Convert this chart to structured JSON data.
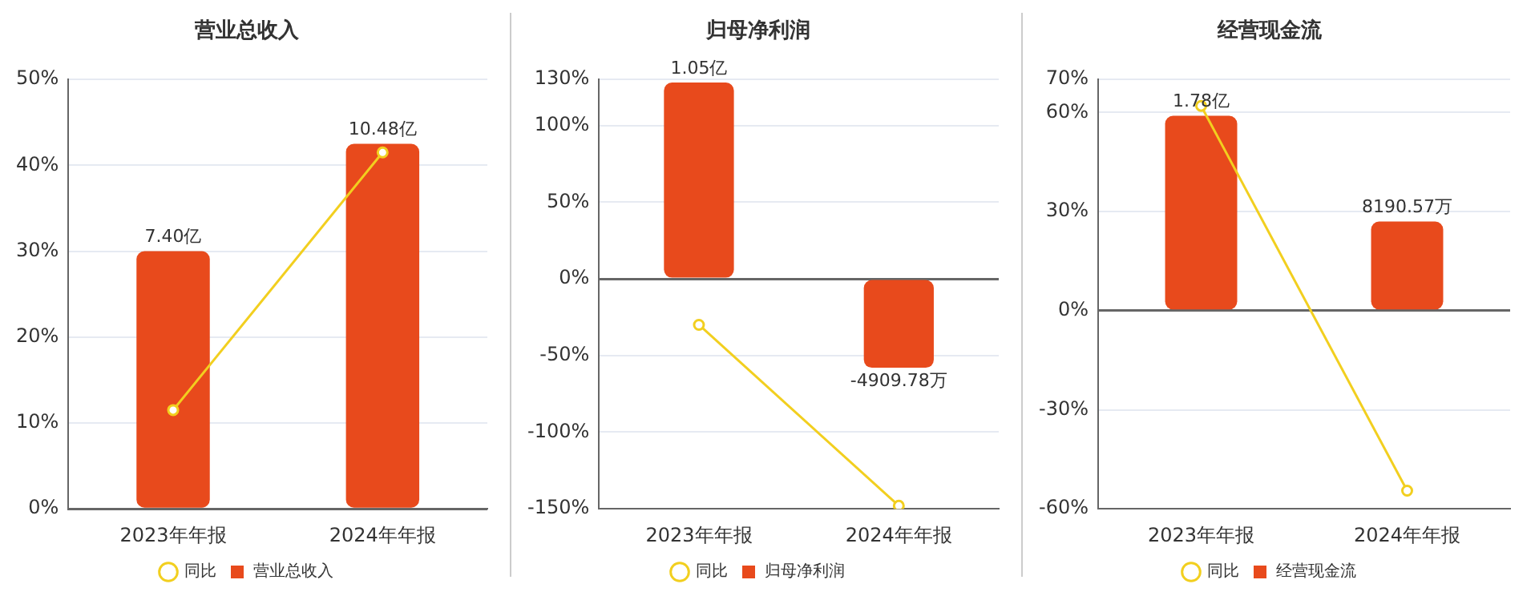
{
  "chart_data": [
    {
      "type": "bar",
      "title": "营业总收入",
      "categories": [
        "2023年年报",
        "2024年年报"
      ],
      "ylim": [
        0,
        50
      ],
      "yticks": [
        {
          "value": 0,
          "label": "0%"
        },
        {
          "value": 10,
          "label": "10%"
        },
        {
          "value": 20,
          "label": "20%"
        },
        {
          "value": 30,
          "label": "30%"
        },
        {
          "value": 40,
          "label": "40%"
        },
        {
          "value": 50,
          "label": "50%"
        }
      ],
      "grid": "y",
      "legend": "bottom",
      "marker": "circle",
      "annotations": [
        {
          "text": "7.40亿",
          "x": "2023年年报",
          "y": 30
        },
        {
          "text": "10.48亿",
          "x": "2024年年报",
          "y": 42.5
        }
      ],
      "series": [
        {
          "name": "营业总收入",
          "color": "#e84a1c",
          "values": [
            30,
            42.5
          ]
        },
        {
          "name": "同比",
          "type": "line",
          "color": "#f2cf1f",
          "values": [
            11.5,
            41.5
          ]
        }
      ]
    },
    {
      "type": "bar",
      "title": "归母净利润",
      "categories": [
        "2023年年报",
        "2024年年报"
      ],
      "ylim": [
        -150,
        130
      ],
      "yticks": [
        {
          "value": -150,
          "label": "-150%"
        },
        {
          "value": -100,
          "label": "-100%"
        },
        {
          "value": -50,
          "label": "-50%"
        },
        {
          "value": 0,
          "label": "0%"
        },
        {
          "value": 50,
          "label": "50%"
        },
        {
          "value": 100,
          "label": "100%"
        },
        {
          "value": 130,
          "label": "130%"
        }
      ],
      "grid": "y",
      "legend": "bottom",
      "marker": "circle",
      "annotations": [
        {
          "text": "1.05亿",
          "x": "2023年年报",
          "y": 128
        },
        {
          "text": "-4909.78万",
          "x": "2024年年报",
          "y": -58
        }
      ],
      "series": [
        {
          "name": "归母净利润",
          "color": "#e84a1c",
          "values": [
            128,
            -58
          ]
        },
        {
          "name": "同比",
          "type": "line",
          "color": "#f2cf1f",
          "values": [
            -30,
            -148
          ]
        }
      ]
    },
    {
      "type": "bar",
      "title": "经营现金流",
      "categories": [
        "2023年年报",
        "2024年年报"
      ],
      "ylim": [
        -60,
        70
      ],
      "yticks": [
        {
          "value": -60,
          "label": "-60%"
        },
        {
          "value": -30,
          "label": "-30%"
        },
        {
          "value": 0,
          "label": "0%"
        },
        {
          "value": 30,
          "label": "30%"
        },
        {
          "value": 60,
          "label": "60%"
        },
        {
          "value": 70,
          "label": "70%"
        }
      ],
      "grid": "y",
      "legend": "bottom",
      "marker": "circle",
      "annotations": [
        {
          "text": "1.78亿",
          "x": "2023年年报",
          "y": 59
        },
        {
          "text": "8190.57万",
          "x": "2024年年报",
          "y": 27
        }
      ],
      "series": [
        {
          "name": "经营现金流",
          "color": "#e84a1c",
          "values": [
            59,
            27
          ]
        },
        {
          "name": "同比",
          "type": "line",
          "color": "#f2cf1f",
          "values": [
            62,
            -54.5
          ]
        }
      ]
    }
  ]
}
